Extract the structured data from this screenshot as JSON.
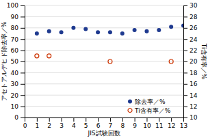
{
  "chart_data": {
    "type": "scatter",
    "xlabel": "JIS試験回数",
    "ylabel": "アセトアルデヒド除去率／%",
    "y2label": "Ti含有率／%",
    "xlim": [
      0,
      13
    ],
    "xticks": [
      0,
      1,
      2,
      3,
      4,
      5,
      6,
      7,
      8,
      9,
      10,
      11,
      12,
      13
    ],
    "ylim": [
      0,
      100
    ],
    "yticks": [
      0,
      10,
      20,
      30,
      40,
      50,
      60,
      70,
      80,
      90,
      100
    ],
    "y2lim": [
      10,
      30
    ],
    "y2ticks": [
      10,
      12,
      14,
      16,
      18,
      20,
      22,
      24,
      26,
      28,
      30
    ],
    "grid": true,
    "legend": "lower right",
    "series": [
      {
        "name": "除去率／%",
        "color": "#1f3a8f",
        "marker": "circle",
        "x": [
          1,
          2,
          3,
          4,
          5,
          6,
          7,
          8,
          9,
          10,
          11,
          12,
          13
        ],
        "values": [
          75,
          77,
          76,
          80,
          79,
          76,
          76,
          75,
          78,
          77,
          78,
          81,
          82
        ]
      },
      {
        "name": "Ti含有率／%",
        "color": "#cc3300",
        "marker": "circle-open",
        "axis": "y2",
        "x": [
          1,
          2,
          7,
          12
        ],
        "values": [
          21,
          21,
          20,
          20
        ]
      }
    ]
  }
}
